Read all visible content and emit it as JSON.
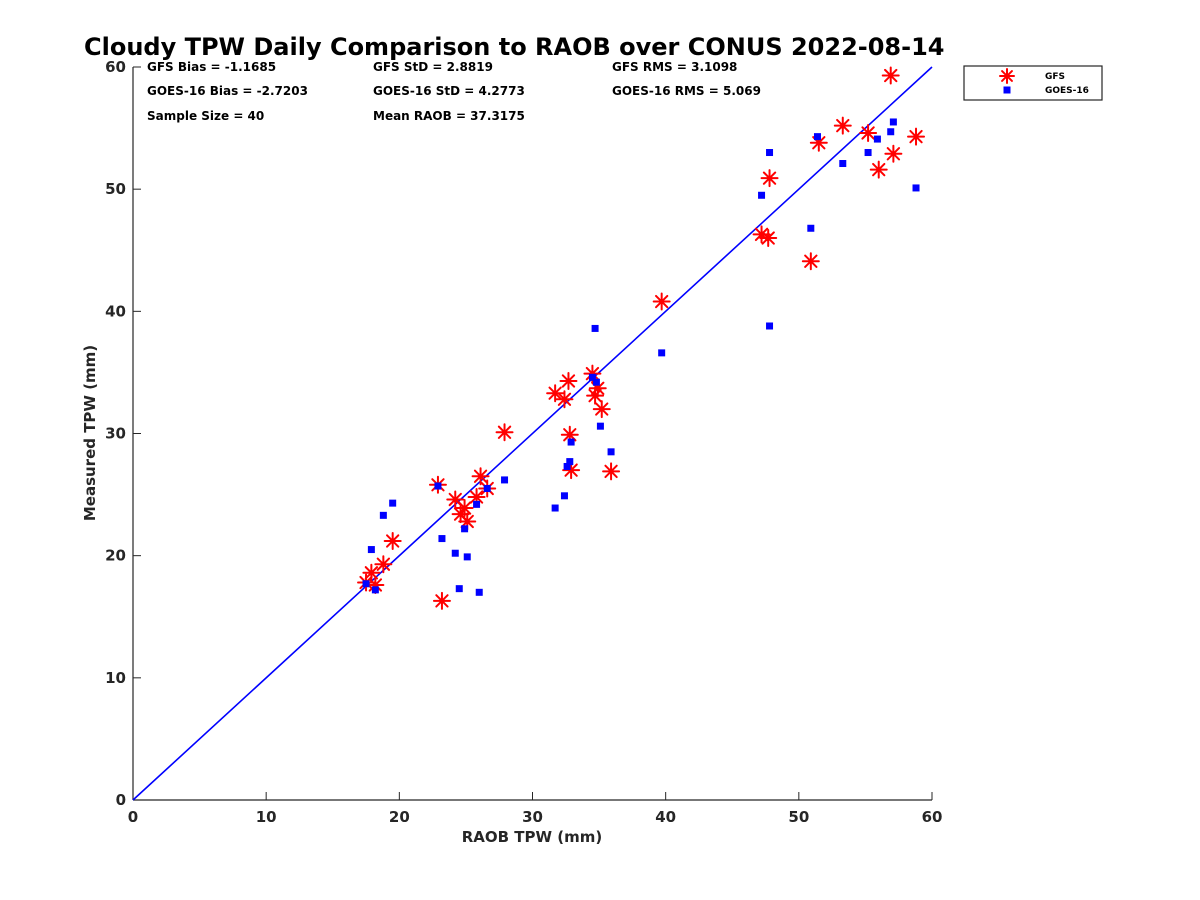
{
  "stats": [
    "GFS Bias = -1.1685",
    "GFS StD = 2.8819",
    "GFS RMS = 3.1098",
    "GOES-16 Bias = -2.7203",
    "GOES-16 StD = 4.2773",
    "GOES-16 RMS = 5.069",
    "Sample Size = 40",
    "Mean RAOB = 37.3175"
  ],
  "colors": {
    "gfs": "#ff0000",
    "goes": "#0000ff",
    "line": "#0000ff",
    "axis": "#262626"
  },
  "chart_data": {
    "type": "scatter",
    "title": "Cloudy TPW Daily Comparison to RAOB over CONUS 2022-08-14",
    "xlabel": "RAOB TPW (mm)",
    "ylabel": "Measured TPW (mm)",
    "xlim": [
      0,
      60
    ],
    "ylim": [
      0,
      60
    ],
    "xticks": [
      0,
      10,
      20,
      30,
      40,
      50,
      60
    ],
    "yticks": [
      0,
      10,
      20,
      30,
      40,
      50,
      60
    ],
    "grid": false,
    "legend_position": "outside-top-right",
    "reference_line": {
      "type": "one-to-one",
      "x": [
        0,
        60
      ],
      "y": [
        0,
        60
      ]
    },
    "series": [
      {
        "name": "GFS",
        "marker": "asterisk",
        "color": "#ff0000",
        "points": [
          [
            17.5,
            17.8
          ],
          [
            17.9,
            18.6
          ],
          [
            18.2,
            17.6
          ],
          [
            18.8,
            19.3
          ],
          [
            19.5,
            21.2
          ],
          [
            22.9,
            25.8
          ],
          [
            23.2,
            16.3
          ],
          [
            24.2,
            24.6
          ],
          [
            24.6,
            23.4
          ],
          [
            24.9,
            23.9
          ],
          [
            25.1,
            22.8
          ],
          [
            25.8,
            24.8
          ],
          [
            26.1,
            26.5
          ],
          [
            26.6,
            25.5
          ],
          [
            27.9,
            30.1
          ],
          [
            31.7,
            33.3
          ],
          [
            32.4,
            32.8
          ],
          [
            32.7,
            34.3
          ],
          [
            32.8,
            29.9
          ],
          [
            32.9,
            27.0
          ],
          [
            34.5,
            34.9
          ],
          [
            34.7,
            33.1
          ],
          [
            34.9,
            33.7
          ],
          [
            35.2,
            32.0
          ],
          [
            35.9,
            26.9
          ],
          [
            39.7,
            40.8
          ],
          [
            47.2,
            46.3
          ],
          [
            47.7,
            46.0
          ],
          [
            47.8,
            50.9
          ],
          [
            50.9,
            44.1
          ],
          [
            51.5,
            53.8
          ],
          [
            53.3,
            55.2
          ],
          [
            55.2,
            54.6
          ],
          [
            56.0,
            51.6
          ],
          [
            56.9,
            59.3
          ],
          [
            57.1,
            52.9
          ],
          [
            58.8,
            54.3
          ]
        ]
      },
      {
        "name": "GOES-16",
        "marker": "square",
        "color": "#0000ff",
        "points": [
          [
            17.5,
            17.7
          ],
          [
            17.9,
            20.5
          ],
          [
            18.2,
            17.2
          ],
          [
            18.8,
            23.3
          ],
          [
            19.5,
            24.3
          ],
          [
            22.9,
            25.7
          ],
          [
            23.2,
            21.4
          ],
          [
            24.2,
            20.2
          ],
          [
            24.5,
            17.3
          ],
          [
            24.9,
            22.2
          ],
          [
            25.1,
            19.9
          ],
          [
            25.8,
            24.2
          ],
          [
            26.0,
            17.0
          ],
          [
            26.6,
            25.5
          ],
          [
            27.9,
            26.2
          ],
          [
            31.7,
            23.9
          ],
          [
            32.4,
            24.9
          ],
          [
            32.6,
            27.3
          ],
          [
            32.8,
            27.7
          ],
          [
            32.9,
            29.3
          ],
          [
            34.5,
            34.6
          ],
          [
            34.7,
            38.6
          ],
          [
            34.8,
            34.2
          ],
          [
            35.1,
            30.6
          ],
          [
            35.9,
            28.5
          ],
          [
            39.7,
            36.6
          ],
          [
            47.2,
            49.5
          ],
          [
            47.8,
            53.0
          ],
          [
            47.8,
            38.8
          ],
          [
            50.9,
            46.8
          ],
          [
            51.4,
            54.3
          ],
          [
            53.3,
            52.1
          ],
          [
            55.2,
            53.0
          ],
          [
            55.9,
            54.1
          ],
          [
            56.9,
            54.7
          ],
          [
            57.1,
            55.5
          ],
          [
            58.8,
            50.1
          ]
        ]
      }
    ]
  }
}
